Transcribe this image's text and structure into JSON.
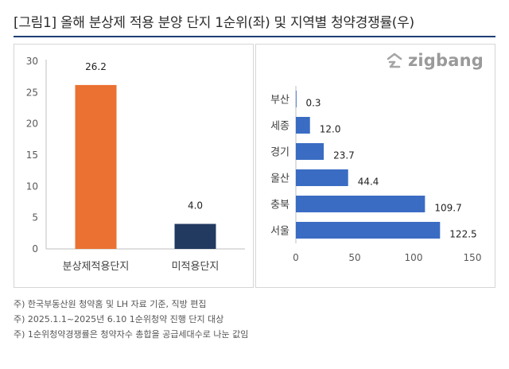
{
  "title": "[그림1] 올해 분상제 적용 분양 단지 1순위(좌) 및 지역별 청약경쟁률(우)",
  "watermark": {
    "text": "zigbang",
    "icon": "zigbang-logo-icon"
  },
  "colors": {
    "title_rule": "#1f3f77",
    "bar_orange": "#ea7131",
    "bar_navy": "#223a60",
    "bar_blue": "#3a6cc3",
    "grid": "#d9d9d9"
  },
  "chart_data": [
    {
      "type": "bar",
      "orientation": "vertical",
      "categories": [
        "분상제적용단지",
        "미적용단지"
      ],
      "values": [
        26.2,
        4.0
      ],
      "value_labels": [
        "26.2",
        "4.0"
      ],
      "bar_colors": [
        "#ea7131",
        "#223a60"
      ],
      "ylim": [
        0,
        30
      ],
      "yticks": [
        "0",
        "5",
        "10",
        "15",
        "20",
        "25",
        "30"
      ],
      "grid": false,
      "title": "",
      "xlabel": "",
      "ylabel": ""
    },
    {
      "type": "bar",
      "orientation": "horizontal",
      "categories": [
        "부산",
        "세종",
        "경기",
        "울산",
        "충북",
        "서울"
      ],
      "values": [
        0.3,
        12.0,
        23.7,
        44.4,
        109.7,
        122.5
      ],
      "value_labels": [
        "0.3",
        "12.0",
        "23.7",
        "44.4",
        "109.7",
        "122.5"
      ],
      "bar_color": "#3a6cc3",
      "xlim": [
        0,
        150
      ],
      "xticks": [
        "0",
        "50",
        "100",
        "150"
      ],
      "grid": false,
      "title": "",
      "xlabel": "",
      "ylabel": ""
    }
  ],
  "notes": [
    "주) 한국부동산원 청약홈 및 LH 자료 기준, 직방 편집",
    "주) 2025.1.1~2025년 6.10 1순위청약 진행 단지 대상",
    "주) 1순위청약경쟁률은 청약자수 총합을 공급세대수로 나눈 값임"
  ]
}
